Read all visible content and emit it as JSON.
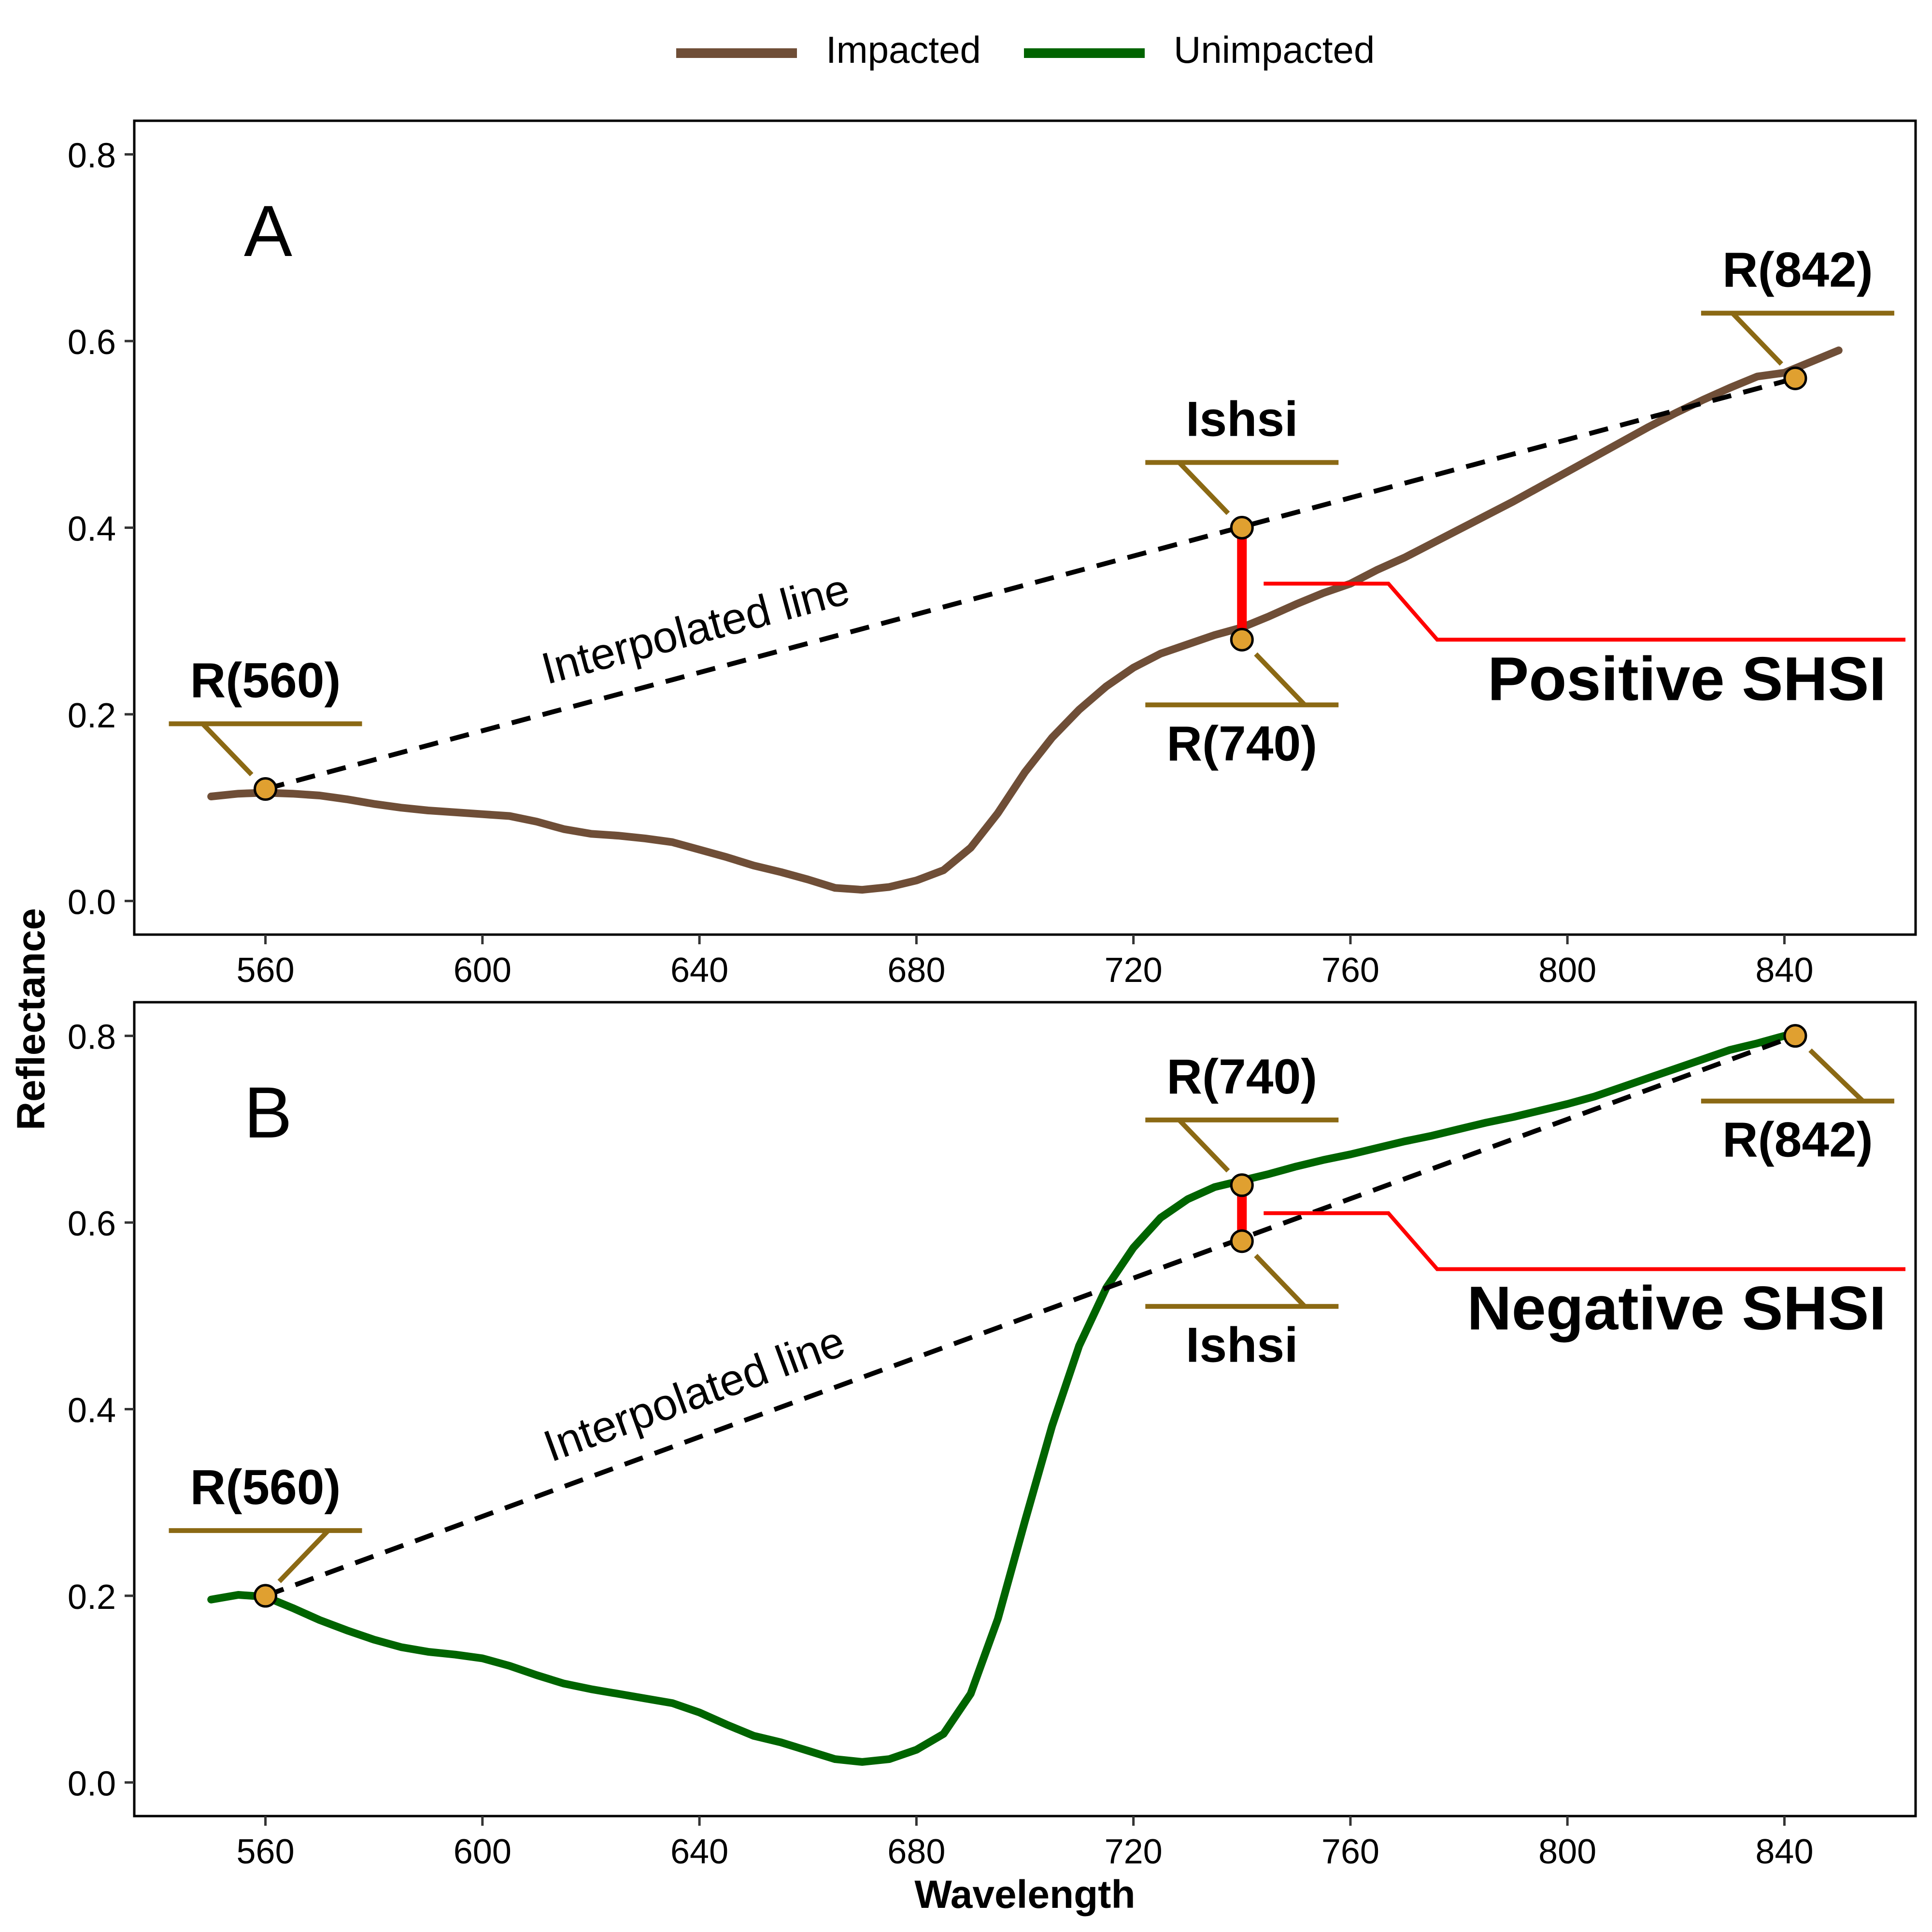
{
  "legend": {
    "items": [
      {
        "label": "Impacted",
        "color": "#6f4e37"
      },
      {
        "label": "Unimpacted",
        "color": "#006400"
      }
    ],
    "position": "top-center"
  },
  "xlabel": "Wavelength",
  "ylabel": "Reflectance",
  "colors": {
    "annotation": "#8b6914",
    "marker_fill": "#e0a030",
    "shsi_bracket": "#ff0000",
    "interpolated": "#000000"
  },
  "chart_data": [
    {
      "type": "line",
      "panel_label": "A",
      "xlim": [
        536,
        864
      ],
      "ylim": [
        -0.035,
        0.835
      ],
      "xticks": [
        560,
        600,
        640,
        680,
        720,
        760,
        800,
        840
      ],
      "yticks": [
        0.0,
        0.2,
        0.4,
        0.6,
        0.8
      ],
      "ytick_labels": [
        "0.0",
        "0.2",
        "0.4",
        "0.6",
        "0.8"
      ],
      "grid": false,
      "series": [
        {
          "name": "Impacted",
          "color": "#6f4e37",
          "x": [
            550,
            555,
            560,
            565,
            570,
            575,
            580,
            585,
            590,
            595,
            600,
            605,
            610,
            615,
            620,
            625,
            630,
            635,
            640,
            645,
            650,
            655,
            660,
            665,
            670,
            675,
            680,
            685,
            690,
            695,
            700,
            705,
            710,
            715,
            720,
            725,
            730,
            735,
            740,
            745,
            750,
            755,
            760,
            765,
            770,
            775,
            780,
            785,
            790,
            795,
            800,
            805,
            810,
            815,
            820,
            825,
            830,
            835,
            840,
            845,
            850
          ],
          "y": [
            0.112,
            0.115,
            0.116,
            0.115,
            0.113,
            0.109,
            0.104,
            0.1,
            0.097,
            0.095,
            0.093,
            0.091,
            0.085,
            0.077,
            0.072,
            0.07,
            0.067,
            0.063,
            0.055,
            0.047,
            0.038,
            0.031,
            0.023,
            0.014,
            0.012,
            0.015,
            0.022,
            0.033,
            0.057,
            0.094,
            0.138,
            0.175,
            0.205,
            0.23,
            0.25,
            0.265,
            0.275,
            0.285,
            0.293,
            0.305,
            0.318,
            0.33,
            0.34,
            0.355,
            0.368,
            0.383,
            0.398,
            0.413,
            0.428,
            0.444,
            0.46,
            0.476,
            0.492,
            0.508,
            0.523,
            0.537,
            0.55,
            0.562,
            0.566,
            0.578,
            0.59
          ]
        }
      ],
      "interpolated_line": {
        "label": "Interpolated line",
        "x": [
          560,
          842
        ],
        "y": [
          0.12,
          0.56
        ]
      },
      "points": [
        {
          "label": "R(560)",
          "x": 560,
          "y": 0.12
        },
        {
          "label": "R(740)",
          "x": 740,
          "y": 0.28
        },
        {
          "label": "R(842)",
          "x": 842,
          "y": 0.56
        },
        {
          "label": "Ishsi",
          "x": 740,
          "y": 0.4
        }
      ],
      "shsi_label": "Positive SHSI"
    },
    {
      "type": "line",
      "panel_label": "B",
      "xlim": [
        536,
        864
      ],
      "ylim": [
        -0.035,
        0.835
      ],
      "xticks": [
        560,
        600,
        640,
        680,
        720,
        760,
        800,
        840
      ],
      "yticks": [
        0.0,
        0.2,
        0.4,
        0.6,
        0.8
      ],
      "ytick_labels": [
        "0.0",
        "0.2",
        "0.4",
        "0.6",
        "0.8"
      ],
      "grid": false,
      "series": [
        {
          "name": "Unimpacted",
          "color": "#006400",
          "x": [
            550,
            555,
            560,
            565,
            570,
            575,
            580,
            585,
            590,
            595,
            600,
            605,
            610,
            615,
            620,
            625,
            630,
            635,
            640,
            645,
            650,
            655,
            660,
            665,
            670,
            675,
            680,
            685,
            690,
            695,
            700,
            705,
            710,
            715,
            720,
            725,
            730,
            735,
            740,
            745,
            750,
            755,
            760,
            765,
            770,
            775,
            780,
            785,
            790,
            795,
            800,
            805,
            810,
            815,
            820,
            825,
            830,
            835,
            840,
            842
          ],
          "y": [
            0.196,
            0.201,
            0.199,
            0.187,
            0.174,
            0.163,
            0.153,
            0.145,
            0.14,
            0.137,
            0.133,
            0.125,
            0.115,
            0.106,
            0.1,
            0.095,
            0.09,
            0.085,
            0.075,
            0.062,
            0.05,
            0.043,
            0.034,
            0.025,
            0.022,
            0.025,
            0.035,
            0.052,
            0.095,
            0.175,
            0.28,
            0.382,
            0.468,
            0.53,
            0.573,
            0.605,
            0.625,
            0.638,
            0.645,
            0.652,
            0.66,
            0.667,
            0.673,
            0.68,
            0.687,
            0.693,
            0.7,
            0.707,
            0.713,
            0.72,
            0.727,
            0.735,
            0.745,
            0.755,
            0.765,
            0.775,
            0.785,
            0.792,
            0.8,
            0.8
          ]
        }
      ],
      "interpolated_line": {
        "label": "Interpolated line",
        "x": [
          560,
          842
        ],
        "y": [
          0.2,
          0.8
        ]
      },
      "points": [
        {
          "label": "R(560)",
          "x": 560,
          "y": 0.2
        },
        {
          "label": "R(740)",
          "x": 740,
          "y": 0.64
        },
        {
          "label": "R(842)",
          "x": 842,
          "y": 0.8
        },
        {
          "label": "Ishsi",
          "x": 740,
          "y": 0.58
        }
      ],
      "shsi_label": "Negative SHSI"
    }
  ]
}
